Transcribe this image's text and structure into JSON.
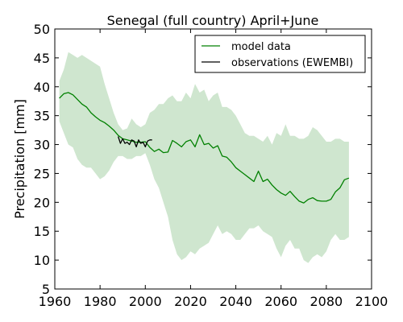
{
  "chart_data": {
    "type": "line",
    "title": "Senegal (full country) April+June",
    "xlabel": "",
    "ylabel": "Precipitation [mm]",
    "xlim": [
      1960,
      2100
    ],
    "ylim": [
      5,
      50
    ],
    "xticks": [
      1960,
      1980,
      2000,
      2020,
      2040,
      2060,
      2080,
      2100
    ],
    "yticks": [
      5,
      10,
      15,
      20,
      25,
      30,
      35,
      40,
      45,
      50
    ],
    "legend": {
      "position": "top-right",
      "entries": [
        "model data",
        "observations (EWEMBI)"
      ]
    },
    "colors": {
      "model": "#008000",
      "band": "#cfe6cf",
      "observations": "#000000"
    },
    "series": [
      {
        "name": "model data",
        "x": [
          1962,
          1964,
          1966,
          1968,
          1970,
          1972,
          1974,
          1976,
          1978,
          1980,
          1982,
          1984,
          1986,
          1988,
          1990,
          1992,
          1994,
          1996,
          1998,
          2000,
          2002,
          2004,
          2006,
          2008,
          2010,
          2012,
          2014,
          2016,
          2018,
          2020,
          2022,
          2024,
          2026,
          2028,
          2030,
          2032,
          2034,
          2036,
          2038,
          2040,
          2042,
          2044,
          2046,
          2048,
          2050,
          2052,
          2054,
          2056,
          2058,
          2060,
          2062,
          2064,
          2066,
          2068,
          2070,
          2072,
          2074,
          2076,
          2078,
          2080,
          2082,
          2084,
          2086,
          2088,
          2090
        ],
        "y": [
          38.0,
          38.8,
          39.0,
          38.6,
          37.8,
          37.0,
          36.5,
          35.5,
          34.8,
          34.2,
          33.8,
          33.2,
          32.5,
          31.6,
          31.0,
          30.8,
          30.6,
          30.4,
          30.4,
          30.5,
          29.5,
          28.8,
          29.2,
          28.6,
          28.7,
          30.7,
          30.2,
          29.6,
          30.5,
          30.8,
          29.6,
          31.7,
          30.0,
          30.2,
          29.4,
          29.8,
          28.0,
          27.8,
          27.0,
          26.0,
          25.4,
          24.8,
          24.2,
          23.6,
          25.4,
          23.6,
          24.0,
          23.0,
          22.2,
          21.6,
          21.2,
          21.9,
          21.0,
          20.2,
          19.9,
          20.5,
          20.8,
          20.3,
          20.2,
          20.2,
          20.5,
          21.8,
          22.5,
          23.9,
          24.2
        ]
      },
      {
        "name": "observations (EWEMBI)",
        "x": [
          1988,
          1989,
          1990,
          1991,
          1992,
          1993,
          1994,
          1995,
          1996,
          1997,
          1998,
          1999,
          2000,
          2001,
          2002,
          2003
        ],
        "y": [
          31.4,
          30.2,
          31.0,
          30.2,
          30.4,
          30.0,
          30.8,
          30.6,
          29.6,
          30.8,
          30.2,
          30.4,
          29.6,
          30.6,
          30.8,
          30.8
        ]
      }
    ],
    "band": {
      "name": "model range",
      "x": [
        1962,
        1964,
        1966,
        1968,
        1970,
        1972,
        1974,
        1976,
        1978,
        1980,
        1982,
        1984,
        1986,
        1988,
        1990,
        1992,
        1994,
        1996,
        1998,
        2000,
        2002,
        2004,
        2006,
        2008,
        2010,
        2012,
        2014,
        2016,
        2018,
        2020,
        2022,
        2024,
        2026,
        2028,
        2030,
        2032,
        2034,
        2036,
        2038,
        2040,
        2042,
        2044,
        2046,
        2048,
        2050,
        2052,
        2054,
        2056,
        2058,
        2060,
        2062,
        2064,
        2066,
        2068,
        2070,
        2072,
        2074,
        2076,
        2078,
        2080,
        2082,
        2084,
        2086,
        2088,
        2090
      ],
      "upper": [
        41.0,
        43.0,
        46.0,
        45.5,
        45.0,
        45.5,
        45.0,
        44.5,
        44.0,
        43.5,
        40.5,
        38.0,
        35.5,
        33.5,
        32.5,
        32.8,
        34.5,
        33.5,
        33.0,
        33.5,
        35.5,
        36.0,
        37.0,
        37.0,
        38.0,
        38.5,
        37.5,
        37.5,
        39.0,
        38.0,
        40.5,
        39.0,
        39.5,
        37.5,
        38.5,
        39.0,
        36.5,
        36.5,
        36.0,
        35.0,
        33.5,
        32.0,
        31.5,
        31.5,
        31.0,
        30.5,
        31.5,
        30.0,
        32.0,
        31.5,
        33.5,
        31.5,
        31.5,
        31.0,
        31.0,
        31.5,
        33.0,
        32.5,
        31.5,
        30.5,
        30.5,
        31.0,
        31.0,
        30.5,
        30.5
      ],
      "lower": [
        34.0,
        32.0,
        30.0,
        29.5,
        27.5,
        26.5,
        26.0,
        26.0,
        25.0,
        24.0,
        24.5,
        25.5,
        27.0,
        28.0,
        28.0,
        27.5,
        27.5,
        28.0,
        28.0,
        28.5,
        26.5,
        24.0,
        22.5,
        20.0,
        17.5,
        13.5,
        11.0,
        10.0,
        10.5,
        11.5,
        11.0,
        12.0,
        12.5,
        13.0,
        14.5,
        16.0,
        14.5,
        15.0,
        14.5,
        13.5,
        13.5,
        14.5,
        15.5,
        15.5,
        16.0,
        15.0,
        14.5,
        14.0,
        12.0,
        10.5,
        12.5,
        13.5,
        12.0,
        12.0,
        10.0,
        9.5,
        10.5,
        11.0,
        10.5,
        11.5,
        13.5,
        14.5,
        13.5,
        13.5,
        14.0
      ]
    }
  }
}
